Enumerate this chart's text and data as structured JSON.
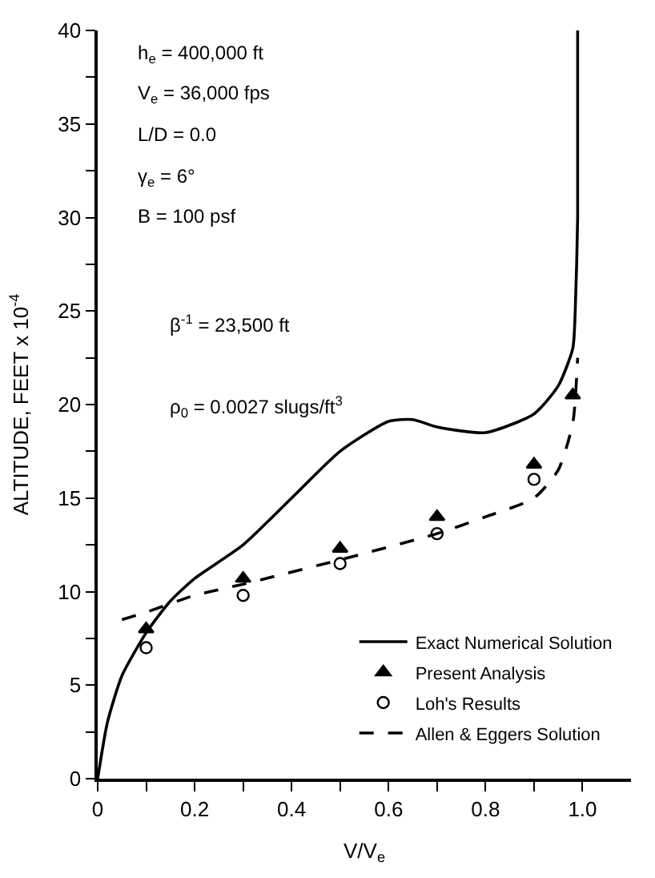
{
  "chart_data": {
    "type": "line",
    "xlabel": "V/V$_{e}$",
    "ylabel": "ALTITUDE, FEET x 10$^{-4}$",
    "xlim": [
      0,
      1.1
    ],
    "ylim": [
      0,
      40
    ],
    "xticks": [
      0,
      {
        "value": 0.1,
        "label": null
      },
      0.2,
      {
        "value": 0.3,
        "label": null
      },
      0.4,
      {
        "value": 0.5,
        "label": null
      },
      0.6,
      {
        "value": 0.7,
        "label": null
      },
      0.8,
      {
        "value": 0.9,
        "label": null
      },
      {
        "value": 1.0,
        "label": "1.0"
      }
    ],
    "yticks": [
      0,
      {
        "value": 2.5,
        "label": null
      },
      5,
      {
        "value": 7.5,
        "label": null
      },
      10,
      {
        "value": 12.5,
        "label": null
      },
      15,
      {
        "value": 17.5,
        "label": null
      },
      20,
      {
        "value": 22.5,
        "label": null
      },
      25,
      {
        "value": 27.5,
        "label": null
      },
      30,
      {
        "value": 32.5,
        "label": null
      },
      35,
      {
        "value": 37.5,
        "label": null
      },
      40
    ],
    "legend": "bottom right",
    "series": [
      {
        "name": "Exact Numerical Solution",
        "color": "#000000",
        "marker": "none",
        "line_style": "solid",
        "x": [
          0,
          0.02,
          0.05,
          0.1,
          0.15,
          0.2,
          0.3,
          0.4,
          0.5,
          0.6,
          0.65,
          0.7,
          0.8,
          0.9,
          0.95,
          0.98,
          0.985,
          0.99,
          0.99
        ],
        "values": [
          0,
          3,
          5.5,
          7.8,
          9.5,
          10.7,
          12.5,
          15,
          17.5,
          19.1,
          19.2,
          18.8,
          18.5,
          19.5,
          21,
          23,
          25,
          30,
          40
        ]
      },
      {
        "name": "Present Analysis",
        "type": "scatter",
        "color": "#000000",
        "marker": "triangle",
        "x": [
          0.1,
          0.3,
          0.5,
          0.7,
          0.9,
          0.98
        ],
        "values": [
          8.0,
          10.7,
          12.3,
          14.0,
          16.8,
          20.5
        ]
      },
      {
        "name": "Loh's Results",
        "type": "scatter",
        "color": "#000000",
        "marker": "circle",
        "x": [
          0.1,
          0.3,
          0.5,
          0.7,
          0.9
        ],
        "values": [
          7.0,
          9.8,
          11.5,
          13.1,
          16.0
        ]
      },
      {
        "name": "Allen & Eggers Solution",
        "color": "#000000",
        "marker": "none",
        "line_style": "dashed",
        "x": [
          0.05,
          0.1,
          0.2,
          0.3,
          0.5,
          0.7,
          0.8,
          0.9,
          0.95,
          0.98,
          0.99
        ],
        "values": [
          8.5,
          8.9,
          9.8,
          10.4,
          11.7,
          13.1,
          14.0,
          15.0,
          16.5,
          19.0,
          22.5
        ]
      }
    ],
    "annotations": [
      "h$_{e}$ = 400,000 ft",
      "V$_{e}$ = 36,000 fps",
      "L/D = 0.0",
      "γ$_{e}$ = 6°",
      "B = 100 psf",
      "β$^{-1}$ = 23,500 ft",
      "ρ$_{0}$ = 0.0027 slugs/ft$^{3}$"
    ]
  }
}
